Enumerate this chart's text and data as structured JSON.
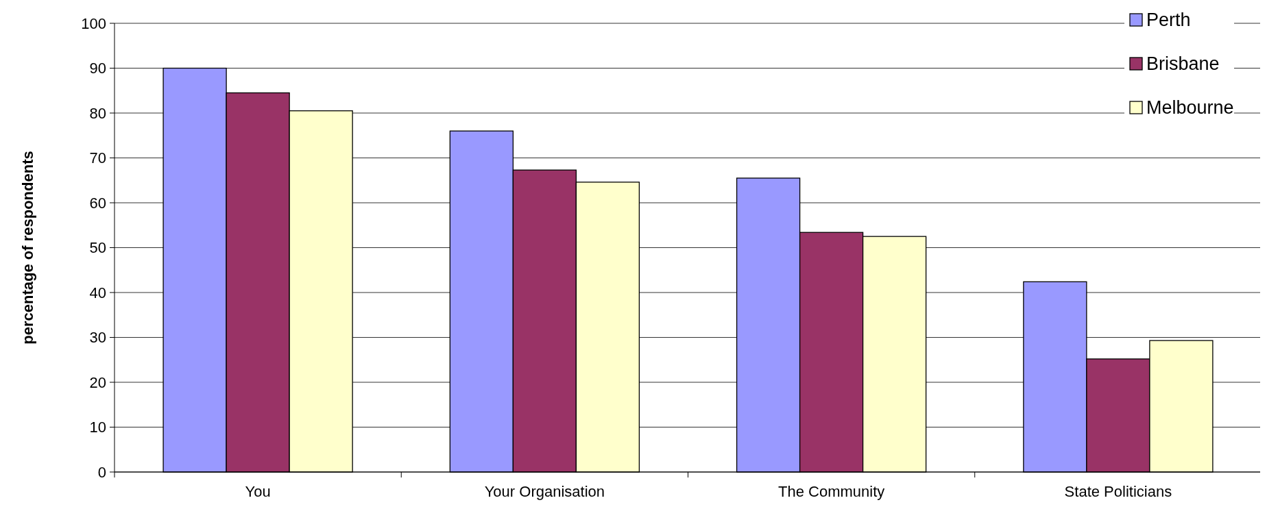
{
  "chart_data": {
    "type": "bar",
    "ylabel": "percentage of respondents",
    "categories": [
      "You",
      "Your Organisation",
      "The Community",
      "State Politicians"
    ],
    "series": [
      {
        "name": "Perth",
        "color": "#9999ff",
        "values": [
          90,
          76,
          65.5,
          42.4
        ]
      },
      {
        "name": "Brisbane",
        "color": "#993366",
        "values": [
          84.5,
          67.3,
          53.4,
          25.2
        ]
      },
      {
        "name": "Melbourne",
        "color": "#ffffcc",
        "values": [
          80.5,
          64.6,
          52.5,
          29.3
        ]
      }
    ],
    "ylim": [
      0,
      100
    ],
    "yticks": [
      0,
      10,
      20,
      30,
      40,
      50,
      60,
      70,
      80,
      90,
      100
    ],
    "grid": "y",
    "legend": "top right"
  }
}
